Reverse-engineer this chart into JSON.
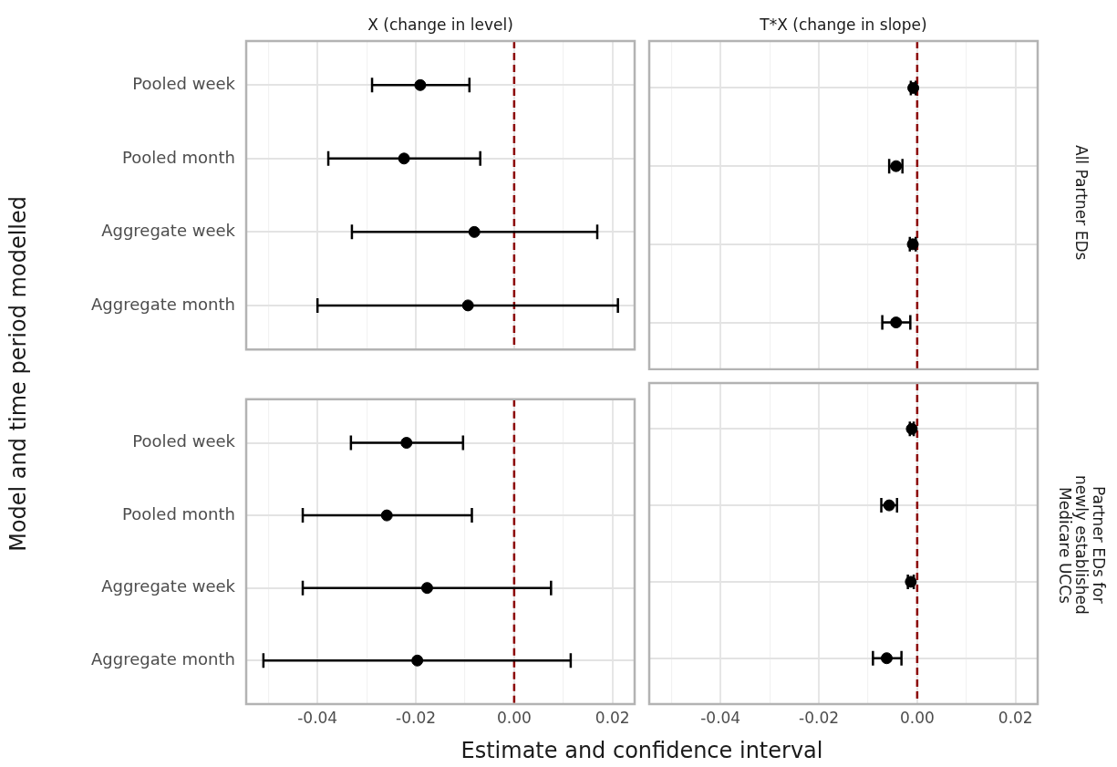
{
  "chart_data": [
    {
      "type": "scatter",
      "orientation": "horizontal",
      "title": "X (change in level)",
      "ylabel": "Model and time period modelled",
      "categories": [
        "Pooled week",
        "Pooled month",
        "Aggregate week",
        "Aggregate month"
      ],
      "series": [
        {
          "color": "#000000",
          "values": [
            -0.0191,
            -0.0224,
            -0.0081,
            -0.0094
          ],
          "errors": [
            [
              -0.0289,
              -0.0091
            ],
            [
              -0.0378,
              -0.0069
            ],
            [
              -0.033,
              0.0169
            ],
            [
              -0.04,
              0.0211
            ]
          ]
        }
      ],
      "xlim": [
        -0.0545,
        0.0245
      ],
      "xticks": [
        {
          "value": -0.05,
          "label": null
        },
        -0.04,
        {
          "value": -0.03,
          "label": null
        },
        -0.02,
        {
          "value": -0.01,
          "label": null
        },
        0.0,
        {
          "value": 0.01,
          "label": null
        },
        0.02
      ],
      "grid": true,
      "marker": "circle",
      "tick_labels": "y",
      "ref_lines": [
        {
          "axis": "x",
          "value": 0,
          "color": "#8b0000",
          "line_style": "dashed"
        }
      ]
    },
    {
      "type": "scatter",
      "orientation": "horizontal",
      "title": "T*X (change in slope)",
      "y2label": "All Partner EDs",
      "categories": [
        null,
        null,
        null,
        null
      ],
      "series": [
        {
          "color": "#000000",
          "values": [
            -0.0008,
            -0.0043,
            -0.0009,
            -0.0043
          ],
          "errors": [
            [
              -0.0013,
              -0.0003
            ],
            [
              -0.0057,
              -0.003
            ],
            [
              -0.0015,
              -0.0003
            ],
            [
              -0.0071,
              -0.0014
            ]
          ]
        }
      ],
      "xlim": [
        -0.0545,
        0.0245
      ],
      "xticks": [
        {
          "value": -0.05,
          "label": null
        },
        -0.04,
        {
          "value": -0.03,
          "label": null
        },
        -0.02,
        {
          "value": -0.01,
          "label": null
        },
        0.0,
        {
          "value": 0.01,
          "label": null
        },
        0.02
      ],
      "grid": true,
      "marker": "circle",
      "tick_labels": false,
      "ref_lines": [
        {
          "axis": "x",
          "value": 0,
          "color": "#8b0000",
          "line_style": "dashed"
        }
      ]
    },
    {
      "type": "scatter",
      "orientation": "horizontal",
      "xlabel": "Estimate and confidence interval",
      "categories": [
        "Pooled week",
        "Pooled month",
        "Aggregate week",
        "Aggregate month"
      ],
      "series": [
        {
          "color": "#000000",
          "values": [
            -0.0219,
            -0.0259,
            -0.0177,
            -0.0197
          ],
          "errors": [
            [
              -0.0332,
              -0.0104
            ],
            [
              -0.043,
              -0.0086
            ],
            [
              -0.043,
              0.0075
            ],
            [
              -0.051,
              0.0115
            ]
          ]
        }
      ],
      "xlim": [
        -0.0545,
        0.0245
      ],
      "xticks": [
        {
          "value": -0.05,
          "label": null
        },
        -0.04,
        {
          "value": -0.03,
          "label": null
        },
        -0.02,
        {
          "value": -0.01,
          "label": null
        },
        {
          "value": 0,
          "label": "0.00"
        },
        {
          "value": 0.01,
          "label": null
        },
        0.02
      ],
      "grid": true,
      "marker": "circle",
      "ref_lines": [
        {
          "axis": "x",
          "value": 0,
          "color": "#8b0000",
          "line_style": "dashed"
        }
      ]
    },
    {
      "type": "scatter",
      "orientation": "horizontal",
      "y2label": "Partner EDs for newly established Medicare UCCs",
      "categories": [
        null,
        null,
        null,
        null
      ],
      "series": [
        {
          "color": "#000000",
          "values": [
            -0.0011,
            -0.0057,
            -0.0013,
            -0.0062
          ],
          "errors": [
            [
              -0.0015,
              -0.0007
            ],
            [
              -0.0073,
              -0.0041
            ],
            [
              -0.0019,
              -0.0007
            ],
            [
              -0.009,
              -0.0032
            ]
          ]
        }
      ],
      "xlim": [
        -0.0545,
        0.0245
      ],
      "xticks": [
        {
          "value": -0.05,
          "label": null
        },
        -0.04,
        {
          "value": -0.03,
          "label": null
        },
        -0.02,
        {
          "value": -0.01,
          "label": null
        },
        {
          "value": 0,
          "label": "0.00"
        },
        {
          "value": 0.01,
          "label": null
        },
        0.02
      ],
      "grid": true,
      "marker": "circle",
      "tick_labels": "x",
      "ref_lines": [
        {
          "axis": "x",
          "value": 0,
          "color": "#8b0000",
          "line_style": "dashed"
        }
      ]
    }
  ]
}
